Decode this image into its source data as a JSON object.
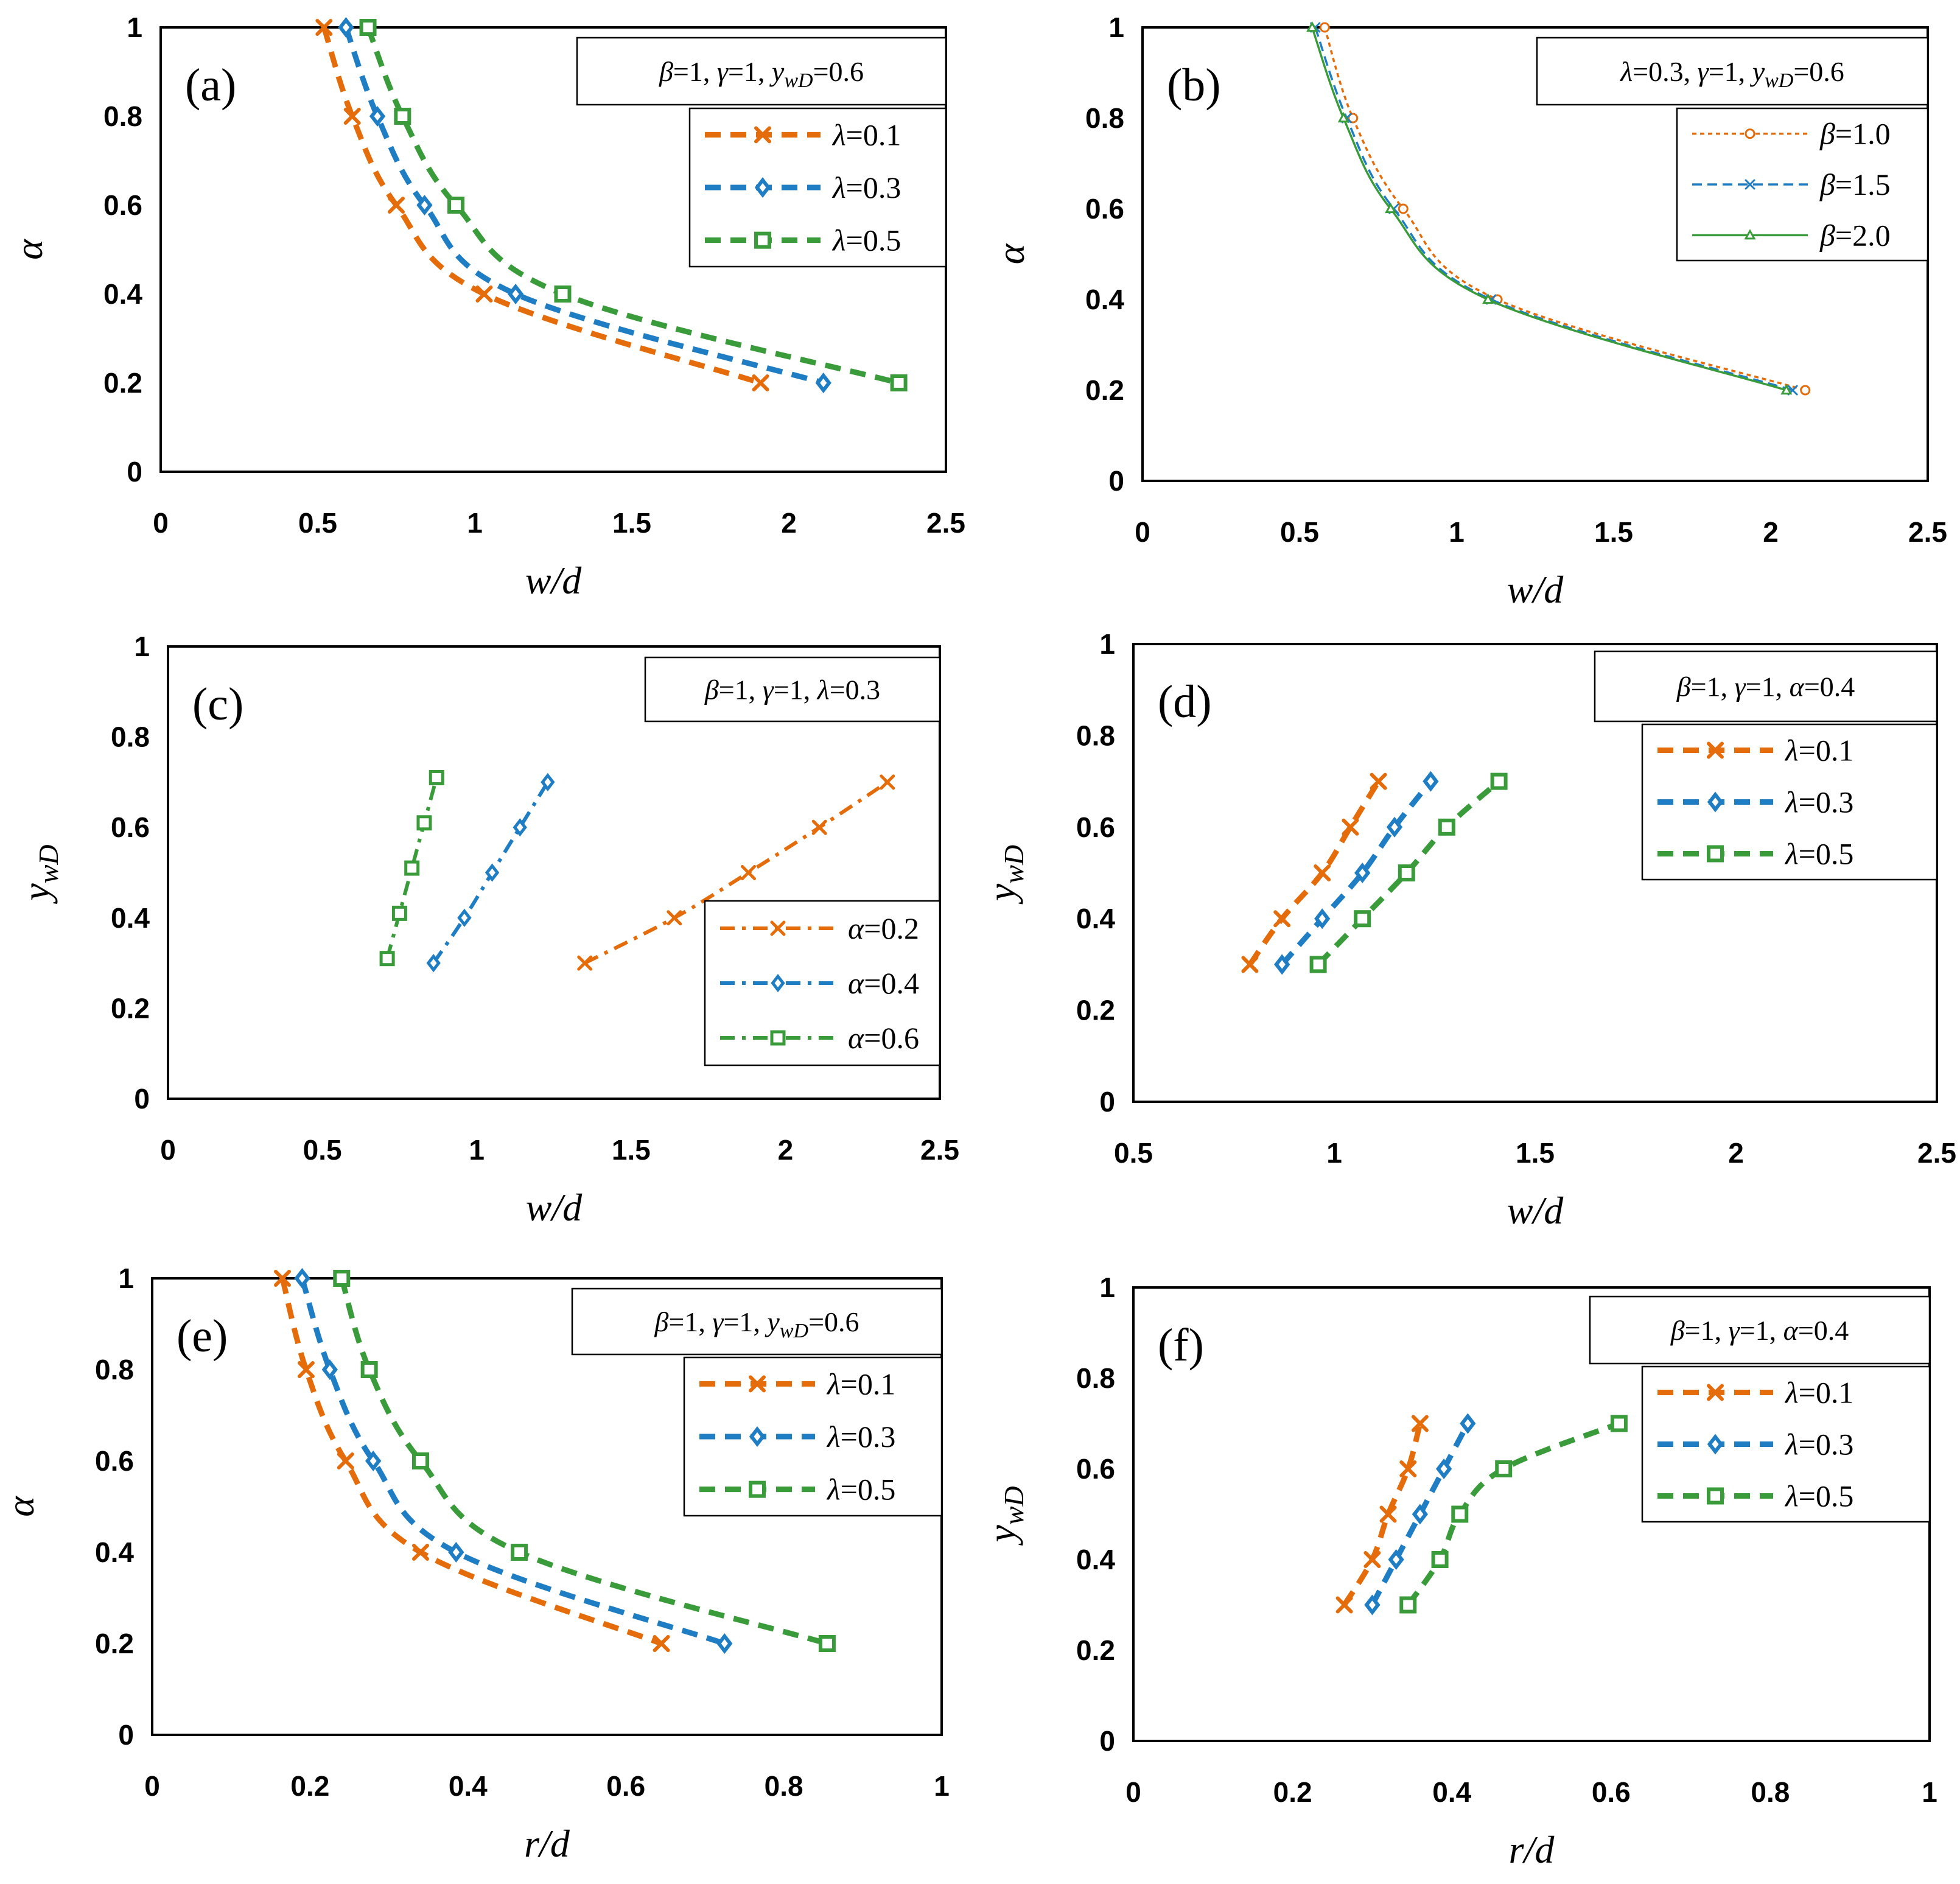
{
  "chart_data": [
    {
      "type": "line",
      "panel_label": "(a)",
      "parameter_box": [
        {
          "t": "β",
          "i": true
        },
        {
          "t": "=1, "
        },
        {
          "t": "γ",
          "i": true
        },
        {
          "t": "=1, "
        },
        {
          "t": "y",
          "i": true
        },
        {
          "t": "wD",
          "i": true,
          "sub": true
        },
        {
          "t": "=0.6"
        }
      ],
      "xlabel": "w/d",
      "ylabel": "α",
      "xlim": [
        0,
        2.5
      ],
      "ylim": [
        0,
        1
      ],
      "xticks": [
        "0",
        "0.5",
        "1",
        "1.5",
        "2",
        "2.5"
      ],
      "yticks": [
        "0",
        "0.2",
        "0.4",
        "0.6",
        "0.8",
        "1"
      ],
      "legend_position": "top-right",
      "series": [
        {
          "name": "λ=0.1",
          "color": "#E46C0A",
          "marker": "x",
          "style": "thick-dash",
          "points": [
            [
              0.52,
              1.0
            ],
            [
              0.61,
              0.8
            ],
            [
              0.75,
              0.6
            ],
            [
              1.03,
              0.4
            ],
            [
              1.91,
              0.2
            ]
          ]
        },
        {
          "name": "λ=0.3",
          "color": "#1F7DC3",
          "marker": "diamond",
          "style": "thick-dash",
          "points": [
            [
              0.59,
              1.0
            ],
            [
              0.69,
              0.8
            ],
            [
              0.84,
              0.6
            ],
            [
              1.13,
              0.4
            ],
            [
              2.11,
              0.2
            ]
          ]
        },
        {
          "name": "λ=0.5",
          "color": "#3A9B3A",
          "marker": "square",
          "style": "thick-dash",
          "points": [
            [
              0.66,
              1.0
            ],
            [
              0.77,
              0.8
            ],
            [
              0.94,
              0.6
            ],
            [
              1.28,
              0.4
            ],
            [
              2.35,
              0.2
            ]
          ]
        }
      ]
    },
    {
      "type": "line",
      "panel_label": "(b)",
      "parameter_box": [
        {
          "t": "λ",
          "i": true
        },
        {
          "t": "=0.3, "
        },
        {
          "t": "γ",
          "i": true
        },
        {
          "t": "=1, "
        },
        {
          "t": "y",
          "i": true
        },
        {
          "t": "wD",
          "i": true,
          "sub": true
        },
        {
          "t": "=0.6"
        }
      ],
      "xlabel": "w/d",
      "ylabel": "α",
      "xlim": [
        0,
        2.5
      ],
      "ylim": [
        0,
        1
      ],
      "xticks": [
        "0",
        "0.5",
        "1",
        "1.5",
        "2",
        "2.5"
      ],
      "yticks": [
        "0",
        "0.2",
        "0.4",
        "0.6",
        "0.8",
        "1"
      ],
      "legend_position": "top-right",
      "series": [
        {
          "name": "β=1.0",
          "color": "#E46C0A",
          "marker": "circle",
          "style": "fine-dot",
          "points": [
            [
              0.58,
              1.0
            ],
            [
              0.67,
              0.8
            ],
            [
              0.83,
              0.6
            ],
            [
              1.13,
              0.4
            ],
            [
              2.11,
              0.2
            ]
          ]
        },
        {
          "name": "β=1.5",
          "color": "#1F7DC3",
          "marker": "x",
          "style": "fine-dash",
          "points": [
            [
              0.55,
              1.0
            ],
            [
              0.65,
              0.8
            ],
            [
              0.8,
              0.6
            ],
            [
              1.11,
              0.4
            ],
            [
              2.07,
              0.2
            ]
          ]
        },
        {
          "name": "β=2.0",
          "color": "#3A9B3A",
          "marker": "triangle",
          "style": "solid-thin",
          "points": [
            [
              0.54,
              1.0
            ],
            [
              0.64,
              0.8
            ],
            [
              0.79,
              0.6
            ],
            [
              1.1,
              0.4
            ],
            [
              2.05,
              0.2
            ]
          ]
        }
      ]
    },
    {
      "type": "line",
      "panel_label": "(c)",
      "parameter_box": [
        {
          "t": "β",
          "i": true
        },
        {
          "t": "=1, "
        },
        {
          "t": "γ",
          "i": true
        },
        {
          "t": "=1, "
        },
        {
          "t": "λ",
          "i": true
        },
        {
          "t": "=0.3"
        }
      ],
      "xlabel": "w/d",
      "ylabel": "ywD",
      "xlim": [
        0,
        2.5
      ],
      "ylim": [
        0,
        1
      ],
      "xticks": [
        "0",
        "0.5",
        "1",
        "1.5",
        "2",
        "2.5"
      ],
      "yticks": [
        "0",
        "0.2",
        "0.4",
        "0.6",
        "0.8",
        "1"
      ],
      "legend_position": "bottom-right",
      "series": [
        {
          "name": "α=0.2",
          "color": "#E46C0A",
          "marker": "x",
          "style": "dash-dot",
          "points": [
            [
              1.35,
              0.3
            ],
            [
              1.64,
              0.4
            ],
            [
              1.88,
              0.5
            ],
            [
              2.11,
              0.6
            ],
            [
              2.33,
              0.7
            ]
          ]
        },
        {
          "name": "α=0.4",
          "color": "#1F7DC3",
          "marker": "diamond",
          "style": "dash-dot",
          "points": [
            [
              0.86,
              0.3
            ],
            [
              0.96,
              0.4
            ],
            [
              1.05,
              0.5
            ],
            [
              1.14,
              0.6
            ],
            [
              1.23,
              0.7
            ]
          ]
        },
        {
          "name": "α=0.6",
          "color": "#3A9B3A",
          "marker": "square",
          "style": "dash-dot",
          "points": [
            [
              0.71,
              0.31
            ],
            [
              0.75,
              0.41
            ],
            [
              0.79,
              0.51
            ],
            [
              0.83,
              0.61
            ],
            [
              0.87,
              0.71
            ]
          ]
        }
      ]
    },
    {
      "type": "line",
      "panel_label": "(d)",
      "parameter_box": [
        {
          "t": "β",
          "i": true
        },
        {
          "t": "=1, "
        },
        {
          "t": "γ",
          "i": true
        },
        {
          "t": "=1, "
        },
        {
          "t": "α",
          "i": true
        },
        {
          "t": "=0.4"
        }
      ],
      "xlabel": "w/d",
      "ylabel": "ywD",
      "xlim": [
        0.5,
        2.5
      ],
      "ylim": [
        0,
        1
      ],
      "xticks": [
        "0.5",
        "1",
        "1.5",
        "2",
        "2.5"
      ],
      "yticks": [
        "0",
        "0.2",
        "0.4",
        "0.6",
        "0.8",
        "1"
      ],
      "legend_position": "top-right",
      "series": [
        {
          "name": "λ=0.1",
          "color": "#E46C0A",
          "marker": "x",
          "style": "thick-dash",
          "points": [
            [
              0.79,
              0.3
            ],
            [
              0.87,
              0.4
            ],
            [
              0.97,
              0.5
            ],
            [
              1.04,
              0.6
            ],
            [
              1.11,
              0.7
            ]
          ]
        },
        {
          "name": "λ=0.3",
          "color": "#1F7DC3",
          "marker": "diamond",
          "style": "thick-dash",
          "points": [
            [
              0.87,
              0.3
            ],
            [
              0.97,
              0.4
            ],
            [
              1.07,
              0.5
            ],
            [
              1.15,
              0.6
            ],
            [
              1.24,
              0.7
            ]
          ]
        },
        {
          "name": "λ=0.5",
          "color": "#3A9B3A",
          "marker": "square",
          "style": "thick-dash",
          "points": [
            [
              0.96,
              0.3
            ],
            [
              1.07,
              0.4
            ],
            [
              1.18,
              0.5
            ],
            [
              1.28,
              0.6
            ],
            [
              1.41,
              0.7
            ]
          ]
        }
      ]
    },
    {
      "type": "line",
      "panel_label": "(e)",
      "parameter_box": [
        {
          "t": "β",
          "i": true
        },
        {
          "t": "=1, "
        },
        {
          "t": "γ",
          "i": true
        },
        {
          "t": "=1, "
        },
        {
          "t": "y",
          "i": true
        },
        {
          "t": "wD",
          "i": true,
          "sub": true
        },
        {
          "t": "=0.6"
        }
      ],
      "xlabel": "r/d",
      "ylabel": "α",
      "xlim": [
        0,
        1
      ],
      "ylim": [
        0,
        1
      ],
      "xticks": [
        "0",
        "0.2",
        "0.4",
        "0.6",
        "0.8",
        "1"
      ],
      "yticks": [
        "0",
        "0.2",
        "0.4",
        "0.6",
        "0.8",
        "1"
      ],
      "legend_position": "top-right",
      "series": [
        {
          "name": "λ=0.1",
          "color": "#E46C0A",
          "marker": "x",
          "style": "thick-dash",
          "points": [
            [
              0.165,
              1.0
            ],
            [
              0.195,
              0.8
            ],
            [
              0.245,
              0.6
            ],
            [
              0.34,
              0.4
            ],
            [
              0.645,
              0.2
            ]
          ]
        },
        {
          "name": "λ=0.3",
          "color": "#1F7DC3",
          "marker": "diamond",
          "style": "thick-dash",
          "points": [
            [
              0.19,
              1.0
            ],
            [
              0.225,
              0.8
            ],
            [
              0.28,
              0.6
            ],
            [
              0.385,
              0.4
            ],
            [
              0.725,
              0.2
            ]
          ]
        },
        {
          "name": "λ=0.5",
          "color": "#3A9B3A",
          "marker": "square",
          "style": "thick-dash",
          "points": [
            [
              0.24,
              1.0
            ],
            [
              0.275,
              0.8
            ],
            [
              0.34,
              0.6
            ],
            [
              0.465,
              0.4
            ],
            [
              0.855,
              0.2
            ]
          ]
        }
      ]
    },
    {
      "type": "line",
      "panel_label": "(f)",
      "parameter_box": [
        {
          "t": "β",
          "i": true
        },
        {
          "t": "=1, "
        },
        {
          "t": "γ",
          "i": true
        },
        {
          "t": "=1, "
        },
        {
          "t": "α",
          "i": true
        },
        {
          "t": "=0.4"
        }
      ],
      "xlabel": "r/d",
      "ylabel": "ywD",
      "xlim": [
        0,
        1
      ],
      "ylim": [
        0,
        1
      ],
      "xticks": [
        "0",
        "0.2",
        "0.4",
        "0.6",
        "0.8",
        "1"
      ],
      "yticks": [
        "0",
        "0.2",
        "0.4",
        "0.6",
        "0.8",
        "1"
      ],
      "legend_position": "top-right",
      "series": [
        {
          "name": "λ=0.1",
          "color": "#E46C0A",
          "marker": "x",
          "style": "thick-dash",
          "points": [
            [
              0.265,
              0.3
            ],
            [
              0.3,
              0.4
            ],
            [
              0.32,
              0.5
            ],
            [
              0.345,
              0.6
            ],
            [
              0.36,
              0.7
            ]
          ]
        },
        {
          "name": "λ=0.3",
          "color": "#1F7DC3",
          "marker": "diamond",
          "style": "thick-dash",
          "points": [
            [
              0.3,
              0.3
            ],
            [
              0.33,
              0.4
            ],
            [
              0.36,
              0.5
            ],
            [
              0.39,
              0.6
            ],
            [
              0.42,
              0.7
            ]
          ]
        },
        {
          "name": "λ=0.5",
          "color": "#3A9B3A",
          "marker": "square",
          "style": "thick-dash",
          "points": [
            [
              0.345,
              0.3
            ],
            [
              0.385,
              0.4
            ],
            [
              0.41,
              0.5
            ],
            [
              0.465,
              0.6
            ],
            [
              0.61,
              0.7
            ]
          ]
        }
      ]
    }
  ]
}
